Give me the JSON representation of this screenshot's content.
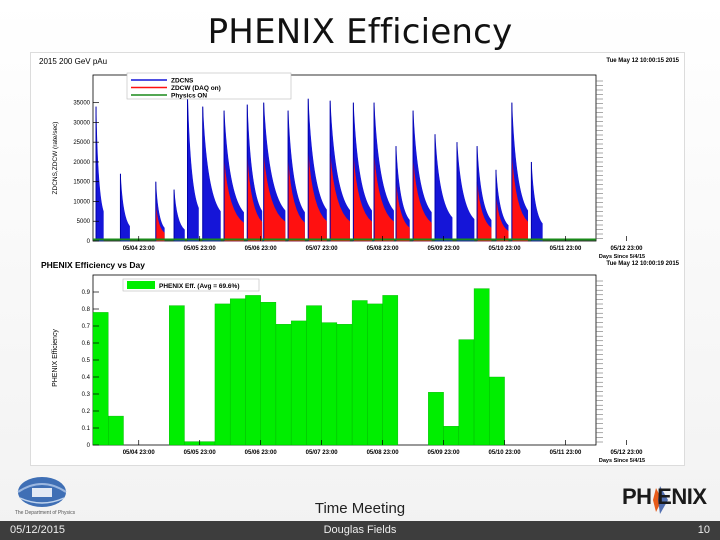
{
  "slide": {
    "title": "PHENIX Efficiency",
    "footer_center": "Time Meeting",
    "date": "05/12/2015",
    "author": "Douglas Fields",
    "page_number": "10",
    "logo_right": "PH  ENIX",
    "logo_left_caption": "The Department of Physics"
  },
  "colors": {
    "blue": "#1515d8",
    "red": "#ff1010",
    "green": "#00ee00",
    "axis": "#000000"
  },
  "chart_data": [
    {
      "type": "area",
      "title": "2015 200 GeV pAu",
      "timestamp": "Tue May 12 10:00:15 2015",
      "ylabel": "ZDCNS,ZDCW (rate/sec)",
      "xlabel": "Days Since 5/4/15",
      "ylim": [
        0,
        42000
      ],
      "xlim": [
        0.25,
        8.5
      ],
      "y_ticks": [
        "0",
        "5000",
        "10000",
        "15000",
        "20000",
        "25000",
        "30000",
        "35000"
      ],
      "x_ticks": [
        "05/04 23:00",
        "05/05 23:00",
        "05/06 23:00",
        "05/07 23:00",
        "05/08 23:00",
        "05/09 23:00",
        "05/10 23:00",
        "05/11 23:00",
        "05/12 23:00"
      ],
      "legend": [
        "ZDCNS",
        "ZDCW (DAQ on)",
        "Physics ON"
      ],
      "fills": [
        {
          "start": 0.3,
          "end": 0.42,
          "peak": 34000,
          "red": false
        },
        {
          "start": 0.7,
          "end": 0.85,
          "peak": 17000,
          "red": false
        },
        {
          "start": 1.28,
          "end": 1.42,
          "peak": 15000,
          "red": true
        },
        {
          "start": 1.58,
          "end": 1.75,
          "peak": 13000,
          "red": false
        },
        {
          "start": 1.8,
          "end": 1.98,
          "peak": 38000,
          "red": false
        },
        {
          "start": 2.05,
          "end": 2.34,
          "peak": 34000,
          "red": false
        },
        {
          "start": 2.4,
          "end": 2.72,
          "peak": 33000,
          "red": true
        },
        {
          "start": 2.78,
          "end": 3.02,
          "peak": 34500,
          "red": true
        },
        {
          "start": 3.05,
          "end": 3.4,
          "peak": 35000,
          "red": true
        },
        {
          "start": 3.45,
          "end": 3.72,
          "peak": 33000,
          "red": true
        },
        {
          "start": 3.78,
          "end": 4.08,
          "peak": 36000,
          "red": true
        },
        {
          "start": 4.14,
          "end": 4.46,
          "peak": 35500,
          "red": true
        },
        {
          "start": 4.52,
          "end": 4.82,
          "peak": 35000,
          "red": true
        },
        {
          "start": 4.86,
          "end": 5.18,
          "peak": 35000,
          "red": true
        },
        {
          "start": 5.22,
          "end": 5.44,
          "peak": 24000,
          "red": true
        },
        {
          "start": 5.5,
          "end": 5.8,
          "peak": 33000,
          "red": true
        },
        {
          "start": 5.86,
          "end": 6.14,
          "peak": 27000,
          "red": false
        },
        {
          "start": 6.22,
          "end": 6.5,
          "peak": 25000,
          "red": false
        },
        {
          "start": 6.55,
          "end": 6.78,
          "peak": 24000,
          "red": true
        },
        {
          "start": 6.86,
          "end": 7.06,
          "peak": 18000,
          "red": true
        },
        {
          "start": 7.12,
          "end": 7.38,
          "peak": 35000,
          "red": true
        },
        {
          "start": 7.44,
          "end": 7.62,
          "peak": 20000,
          "red": false
        }
      ]
    },
    {
      "type": "bar",
      "title": "PHENIX Efficiency vs Day",
      "timestamp": "Tue May 12 10:00:19 2015",
      "ylabel": "PHENIX Efficiency",
      "xlabel": "Days Since 5/4/15",
      "ylim": [
        0,
        1.0
      ],
      "xlim": [
        0.25,
        8.5
      ],
      "y_ticks": [
        "0",
        "0.1",
        "0.2",
        "0.3",
        "0.4",
        "0.5",
        "0.6",
        "0.7",
        "0.8",
        "0.9"
      ],
      "x_ticks": [
        "05/04 23:00",
        "05/05 23:00",
        "05/06 23:00",
        "05/07 23:00",
        "05/08 23:00",
        "05/09 23:00",
        "05/10 23:00",
        "05/11 23:00",
        "05/12 23:00"
      ],
      "legend": [
        "PHENIX Eff. (Avg = 69.6%)"
      ],
      "bin_width": 0.25,
      "bins": [
        {
          "x": 0.25,
          "value": 0.78
        },
        {
          "x": 0.5,
          "value": 0.17
        },
        {
          "x": 0.75,
          "value": 0
        },
        {
          "x": 1.0,
          "value": 0
        },
        {
          "x": 1.25,
          "value": 0
        },
        {
          "x": 1.5,
          "value": 0.82
        },
        {
          "x": 1.75,
          "value": 0.02
        },
        {
          "x": 2.0,
          "value": 0.02
        },
        {
          "x": 2.25,
          "value": 0.83
        },
        {
          "x": 2.5,
          "value": 0.86
        },
        {
          "x": 2.75,
          "value": 0.88
        },
        {
          "x": 3.0,
          "value": 0.84
        },
        {
          "x": 3.25,
          "value": 0.71
        },
        {
          "x": 3.5,
          "value": 0.73
        },
        {
          "x": 3.75,
          "value": 0.82
        },
        {
          "x": 4.0,
          "value": 0.72
        },
        {
          "x": 4.25,
          "value": 0.71
        },
        {
          "x": 4.5,
          "value": 0.85
        },
        {
          "x": 4.75,
          "value": 0.83
        },
        {
          "x": 5.0,
          "value": 0.88
        },
        {
          "x": 5.25,
          "value": 0
        },
        {
          "x": 5.5,
          "value": 0
        },
        {
          "x": 5.75,
          "value": 0.31
        },
        {
          "x": 6.0,
          "value": 0.11
        },
        {
          "x": 6.25,
          "value": 0.62
        },
        {
          "x": 6.5,
          "value": 0.92
        },
        {
          "x": 6.75,
          "value": 0.4
        }
      ]
    }
  ]
}
